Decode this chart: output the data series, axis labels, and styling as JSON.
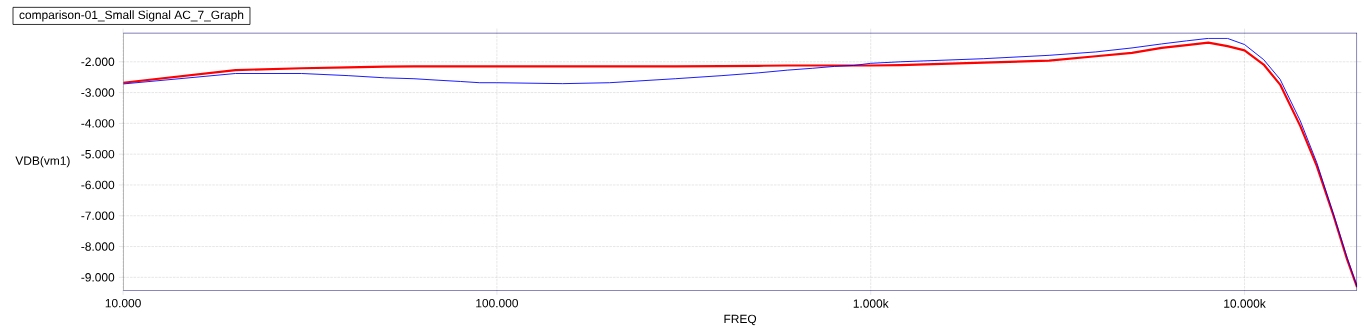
{
  "chart_data": {
    "type": "line",
    "title": "comparison-01_Small Signal AC_7_Graph",
    "xlabel": "FREQ",
    "ylabel": "VDB(vm1)",
    "log": "x",
    "grid": true,
    "xlim": [
      10,
      20000
    ],
    "ylim": [
      -9.43,
      -1.06
    ],
    "xticks": [
      {
        "value": 10,
        "label": "10.000"
      },
      {
        "value": 100,
        "label": "100.000"
      },
      {
        "value": 1000,
        "label": "1.000k"
      },
      {
        "value": 10000,
        "label": "10.000k"
      }
    ],
    "yticks": [
      {
        "value": -9,
        "label": "-9.000"
      },
      {
        "value": -8,
        "label": "-8.000"
      },
      {
        "value": -7,
        "label": "-7.000"
      },
      {
        "value": -6,
        "label": "-6.000"
      },
      {
        "value": -5,
        "label": "-5.000"
      },
      {
        "value": -4,
        "label": "-4.000"
      },
      {
        "value": -3,
        "label": "-3.000"
      },
      {
        "value": -2,
        "label": "-2.000"
      }
    ],
    "x": [
      10,
      20,
      30,
      40,
      50,
      60,
      70,
      80,
      90,
      100,
      150,
      200,
      300,
      400,
      500,
      600,
      700,
      800,
      900,
      1000,
      1200,
      2000,
      3000,
      4000,
      5000,
      6000,
      7000,
      8000,
      9000,
      10000,
      11250,
      12450,
      14100,
      15600,
      17300,
      18800,
      20000
    ],
    "series": [
      {
        "color": "#ff0000",
        "values": [
          -2.68,
          -2.27,
          -2.21,
          -2.18,
          -2.16,
          -2.15,
          -2.15,
          -2.15,
          -2.15,
          -2.15,
          -2.15,
          -2.15,
          -2.15,
          -2.14,
          -2.13,
          -2.12,
          -2.12,
          -2.12,
          -2.12,
          -2.12,
          -2.11,
          -2.03,
          -1.96,
          -1.82,
          -1.71,
          -1.55,
          -1.46,
          -1.38,
          -1.49,
          -1.63,
          -2.09,
          -2.74,
          -4.09,
          -5.38,
          -7.0,
          -8.41,
          -9.32
        ]
      },
      {
        "color": "#0000ff",
        "values": [
          -2.72,
          -2.38,
          -2.38,
          -2.45,
          -2.52,
          -2.55,
          -2.6,
          -2.64,
          -2.68,
          -2.68,
          -2.71,
          -2.68,
          -2.55,
          -2.45,
          -2.36,
          -2.27,
          -2.21,
          -2.15,
          -2.12,
          -2.05,
          -2.0,
          -1.9,
          -1.79,
          -1.68,
          -1.55,
          -1.42,
          -1.32,
          -1.24,
          -1.24,
          -1.44,
          -1.93,
          -2.57,
          -3.92,
          -5.27,
          -6.95,
          -8.35,
          -9.3
        ]
      }
    ]
  }
}
